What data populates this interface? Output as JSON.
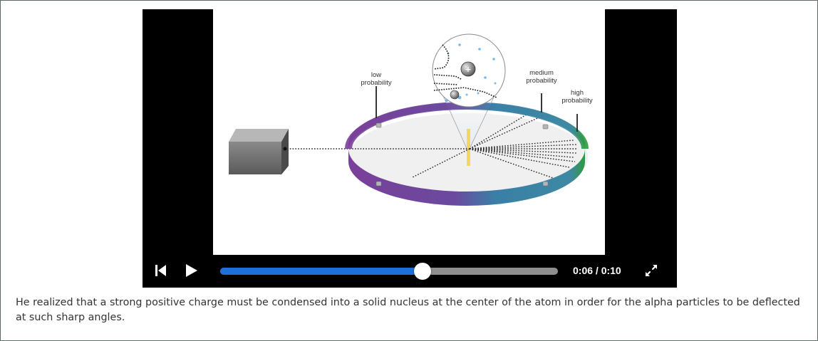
{
  "video": {
    "diagram": {
      "labels": {
        "low_line1": "low",
        "low_line2": "probability",
        "medium_line1": "medium",
        "medium_line2": "probability",
        "high_line1": "high",
        "high_line2": "probability"
      },
      "ring_colors": {
        "purple": "#7a3f9a",
        "blue": "#3a7fa6",
        "green": "#2e9a3c"
      }
    },
    "controls": {
      "restart_icon": "skip-back-icon",
      "play_icon": "play-icon",
      "fullscreen_icon": "fullscreen-icon",
      "progress_fraction": 0.6,
      "current_time": "0:06",
      "duration": "0:10",
      "time_display": "0:06 / 0:10",
      "progress_color": "#1e6fd9"
    }
  },
  "caption": {
    "text": "He realized that a strong positive charge must be condensed into a solid nucleus at the center of the atom in order for the alpha particles to be deflected at such sharp angles."
  }
}
